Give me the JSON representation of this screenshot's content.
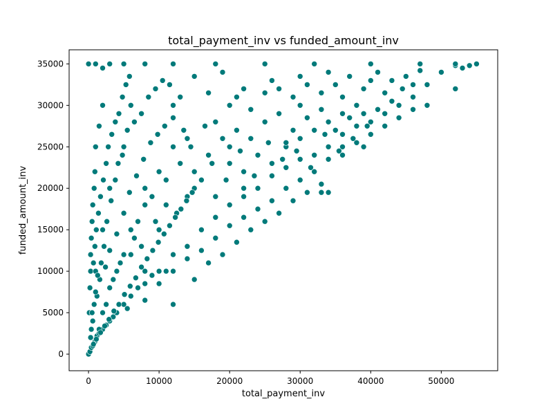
{
  "chart_data": {
    "type": "scatter",
    "title": "total_payment_inv vs funded_amount_inv",
    "xlabel": "total_payment_inv",
    "ylabel": "funded_amount_inv",
    "xlim": [
      -2750,
      58000
    ],
    "ylim": [
      -2000,
      36700
    ],
    "xticks": [
      0,
      10000,
      20000,
      30000,
      40000,
      50000
    ],
    "yticks": [
      0,
      5000,
      10000,
      15000,
      20000,
      25000,
      30000,
      35000
    ],
    "grid": false,
    "legend": "none",
    "color": "#007a7a",
    "series": [
      {
        "points": [
          [
            0,
            0
          ],
          [
            200,
            300
          ],
          [
            400,
            800
          ],
          [
            600,
            1000
          ],
          [
            900,
            1500
          ],
          [
            1200,
            2200
          ],
          [
            1500,
            2500
          ],
          [
            2000,
            3000
          ],
          [
            2500,
            3500
          ],
          [
            3000,
            4000
          ],
          [
            3500,
            4500
          ],
          [
            4000,
            5000
          ],
          [
            5000,
            6000
          ],
          [
            6000,
            7000
          ],
          [
            7000,
            8000
          ],
          [
            8000,
            8500
          ],
          [
            9000,
            9500
          ],
          [
            10000,
            10000
          ],
          [
            12000,
            12000
          ],
          [
            14000,
            13000
          ],
          [
            16000,
            15000
          ],
          [
            18000,
            16500
          ],
          [
            20000,
            18000
          ],
          [
            22000,
            19000
          ],
          [
            24000,
            20000
          ],
          [
            26000,
            21500
          ],
          [
            28000,
            22500
          ],
          [
            30000,
            23500
          ],
          [
            32000,
            24000
          ],
          [
            34000,
            25000
          ],
          [
            36000,
            26500
          ],
          [
            38000,
            27500
          ],
          [
            40000,
            28000
          ],
          [
            42000,
            29000
          ],
          [
            44000,
            30000
          ],
          [
            46000,
            31000
          ],
          [
            48000,
            32500
          ],
          [
            50000,
            34000
          ],
          [
            52000,
            34800
          ],
          [
            55000,
            35000
          ],
          [
            100,
            5000
          ],
          [
            200,
            8000
          ],
          [
            300,
            10000
          ],
          [
            300,
            12000
          ],
          [
            400,
            14000
          ],
          [
            500,
            16000
          ],
          [
            600,
            18000
          ],
          [
            800,
            20000
          ],
          [
            900,
            22000
          ],
          [
            1000,
            25000
          ],
          [
            1500,
            27500
          ],
          [
            2000,
            34500
          ],
          [
            0,
            35000
          ],
          [
            1000,
            35000
          ],
          [
            3000,
            35000
          ],
          [
            5000,
            35000
          ],
          [
            8000,
            35000
          ],
          [
            12000,
            35000
          ],
          [
            18000,
            35000
          ],
          [
            25000,
            35000
          ],
          [
            32000,
            35000
          ],
          [
            40000,
            35000
          ],
          [
            47000,
            35000
          ],
          [
            52000,
            35000
          ],
          [
            2000,
            30000
          ],
          [
            6000,
            30000
          ],
          [
            12000,
            30000
          ],
          [
            20000,
            30000
          ],
          [
            30000,
            30000
          ],
          [
            38000,
            30000
          ],
          [
            44000,
            30000
          ],
          [
            48000,
            30000
          ],
          [
            1000,
            25000
          ],
          [
            5000,
            25000
          ],
          [
            12000,
            25000
          ],
          [
            20000,
            25000
          ],
          [
            28000,
            25000
          ],
          [
            36000,
            25000
          ],
          [
            39000,
            25000
          ],
          [
            3000,
            20000
          ],
          [
            8000,
            20000
          ],
          [
            15000,
            20000
          ],
          [
            22000,
            20000
          ],
          [
            28000,
            20000
          ],
          [
            33000,
            19500
          ],
          [
            2000,
            15000
          ],
          [
            6000,
            15000
          ],
          [
            10000,
            15000
          ],
          [
            16000,
            15000
          ],
          [
            1000,
            10000
          ],
          [
            4000,
            10000
          ],
          [
            8000,
            10000
          ],
          [
            11000,
            10000
          ],
          [
            500,
            5000
          ],
          [
            2000,
            5000
          ],
          [
            4000,
            5000
          ],
          [
            5500,
            5500
          ],
          [
            6000,
            12000
          ],
          [
            8000,
            18000
          ],
          [
            10000,
            22000
          ],
          [
            14000,
            26000
          ],
          [
            18000,
            28000
          ],
          [
            22000,
            32000
          ],
          [
            26000,
            33000
          ],
          [
            30000,
            33500
          ],
          [
            34000,
            34000
          ],
          [
            36000,
            31000
          ],
          [
            40000,
            33000
          ],
          [
            42000,
            31500
          ],
          [
            45000,
            33500
          ],
          [
            52000,
            32000
          ],
          [
            53000,
            34500
          ],
          [
            54000,
            34800
          ],
          [
            3000,
            8000
          ],
          [
            5000,
            12000
          ],
          [
            7000,
            16000
          ],
          [
            9000,
            19000
          ],
          [
            11000,
            21000
          ],
          [
            13000,
            23000
          ],
          [
            15000,
            22000
          ],
          [
            17000,
            24000
          ],
          [
            19000,
            26000
          ],
          [
            21000,
            27000
          ],
          [
            23000,
            26000
          ],
          [
            25000,
            28000
          ],
          [
            27000,
            29000
          ],
          [
            29000,
            27000
          ],
          [
            31000,
            28500
          ],
          [
            33000,
            29500
          ],
          [
            35000,
            27000
          ],
          [
            37000,
            28500
          ],
          [
            39000,
            29000
          ],
          [
            41000,
            29500
          ],
          [
            43000,
            30500
          ],
          [
            46000,
            32500
          ],
          [
            48000,
            30000
          ],
          [
            1500,
            3000
          ],
          [
            2500,
            6000
          ],
          [
            3500,
            9000
          ],
          [
            4500,
            11000
          ],
          [
            6500,
            14000
          ],
          [
            7500,
            13000
          ],
          [
            9500,
            16000
          ],
          [
            11000,
            18000
          ],
          [
            12500,
            17000
          ],
          [
            14000,
            19000
          ],
          [
            16000,
            21000
          ],
          [
            18000,
            19000
          ],
          [
            20000,
            23000
          ],
          [
            22000,
            22000
          ],
          [
            24000,
            24000
          ],
          [
            26000,
            23000
          ],
          [
            28000,
            25500
          ],
          [
            30000,
            26000
          ],
          [
            32000,
            27000
          ],
          [
            34000,
            28000
          ],
          [
            36000,
            29000
          ],
          [
            1800,
            11000
          ],
          [
            2200,
            13000
          ],
          [
            2600,
            16000
          ],
          [
            3200,
            18500
          ],
          [
            3800,
            21000
          ],
          [
            4200,
            23000
          ],
          [
            4800,
            24000
          ],
          [
            5500,
            27000
          ],
          [
            6500,
            28000
          ],
          [
            7500,
            29000
          ],
          [
            8500,
            31000
          ],
          [
            9500,
            32000
          ],
          [
            10500,
            33000
          ],
          [
            11500,
            32500
          ],
          [
            13000,
            31000
          ],
          [
            15000,
            33500
          ],
          [
            17000,
            31500
          ],
          [
            19000,
            34000
          ],
          [
            21000,
            31000
          ],
          [
            23000,
            29500
          ],
          [
            25000,
            31500
          ],
          [
            27000,
            32000
          ],
          [
            29000,
            31000
          ],
          [
            31000,
            32500
          ],
          [
            33000,
            31500
          ],
          [
            35000,
            32500
          ],
          [
            37000,
            33500
          ],
          [
            39000,
            32000
          ],
          [
            41000,
            34000
          ],
          [
            43000,
            33000
          ],
          [
            44500,
            32000
          ],
          [
            47000,
            34200
          ],
          [
            1200,
            7000
          ],
          [
            1600,
            9000
          ],
          [
            2400,
            10500
          ],
          [
            3000,
            12500
          ],
          [
            4000,
            14500
          ],
          [
            5000,
            17000
          ],
          [
            5800,
            19500
          ],
          [
            6800,
            21500
          ],
          [
            7800,
            23500
          ],
          [
            8800,
            25500
          ],
          [
            9800,
            26500
          ],
          [
            10800,
            27500
          ],
          [
            12000,
            28500
          ],
          [
            13500,
            27000
          ],
          [
            14500,
            25000
          ],
          [
            16500,
            27500
          ],
          [
            17500,
            23000
          ],
          [
            19500,
            21000
          ],
          [
            21500,
            24500
          ],
          [
            23500,
            21500
          ],
          [
            25500,
            25500
          ],
          [
            27500,
            23500
          ],
          [
            29500,
            24500
          ],
          [
            31500,
            22500
          ],
          [
            33500,
            26500
          ],
          [
            35500,
            24500
          ],
          [
            37500,
            26000
          ],
          [
            39500,
            27500
          ],
          [
            8000,
            6500
          ],
          [
            10000,
            8500
          ],
          [
            12000,
            10000
          ],
          [
            14000,
            11500
          ],
          [
            16000,
            12500
          ],
          [
            18000,
            14000
          ],
          [
            20000,
            15500
          ],
          [
            22000,
            16500
          ],
          [
            24000,
            17500
          ],
          [
            26000,
            18500
          ],
          [
            28000,
            20000
          ],
          [
            30000,
            21000
          ],
          [
            32000,
            22000
          ],
          [
            34000,
            23500
          ],
          [
            36000,
            24000
          ],
          [
            38000,
            25500
          ],
          [
            40000,
            26500
          ],
          [
            42000,
            27500
          ],
          [
            44000,
            28500
          ],
          [
            46000,
            29500
          ],
          [
            12000,
            6000
          ],
          [
            15000,
            9000
          ],
          [
            17000,
            11000
          ],
          [
            19000,
            12000
          ],
          [
            21000,
            13500
          ],
          [
            23000,
            15000
          ],
          [
            25000,
            16000
          ],
          [
            27000,
            17000
          ],
          [
            29000,
            18500
          ],
          [
            31000,
            19500
          ],
          [
            33000,
            20500
          ],
          [
            34000,
            19500
          ],
          [
            700,
            1200
          ],
          [
            1100,
            1800
          ],
          [
            1700,
            2600
          ],
          [
            2300,
            3400
          ],
          [
            2900,
            4200
          ],
          [
            3600,
            5200
          ],
          [
            4300,
            6000
          ],
          [
            5100,
            7200
          ],
          [
            5900,
            8200
          ],
          [
            6700,
            9200
          ],
          [
            7500,
            10500
          ],
          [
            8300,
            11500
          ],
          [
            9100,
            12500
          ],
          [
            9900,
            13500
          ],
          [
            10700,
            14500
          ],
          [
            11500,
            15500
          ],
          [
            12300,
            16500
          ],
          [
            13100,
            17500
          ],
          [
            13900,
            18500
          ],
          [
            14700,
            19500
          ],
          [
            300,
            2000
          ],
          [
            400,
            3000
          ],
          [
            600,
            4000
          ],
          [
            800,
            6000
          ],
          [
            1000,
            7500
          ],
          [
            1300,
            9500
          ],
          [
            700,
            11000
          ],
          [
            900,
            13000
          ],
          [
            1100,
            15000
          ],
          [
            1400,
            17000
          ],
          [
            1700,
            19000
          ],
          [
            2100,
            21000
          ],
          [
            2500,
            23000
          ],
          [
            2800,
            25000
          ],
          [
            3300,
            26500
          ],
          [
            3800,
            28000
          ],
          [
            4300,
            29000
          ],
          [
            4800,
            31000
          ],
          [
            5300,
            32500
          ],
          [
            5800,
            33500
          ]
        ]
      }
    ]
  }
}
